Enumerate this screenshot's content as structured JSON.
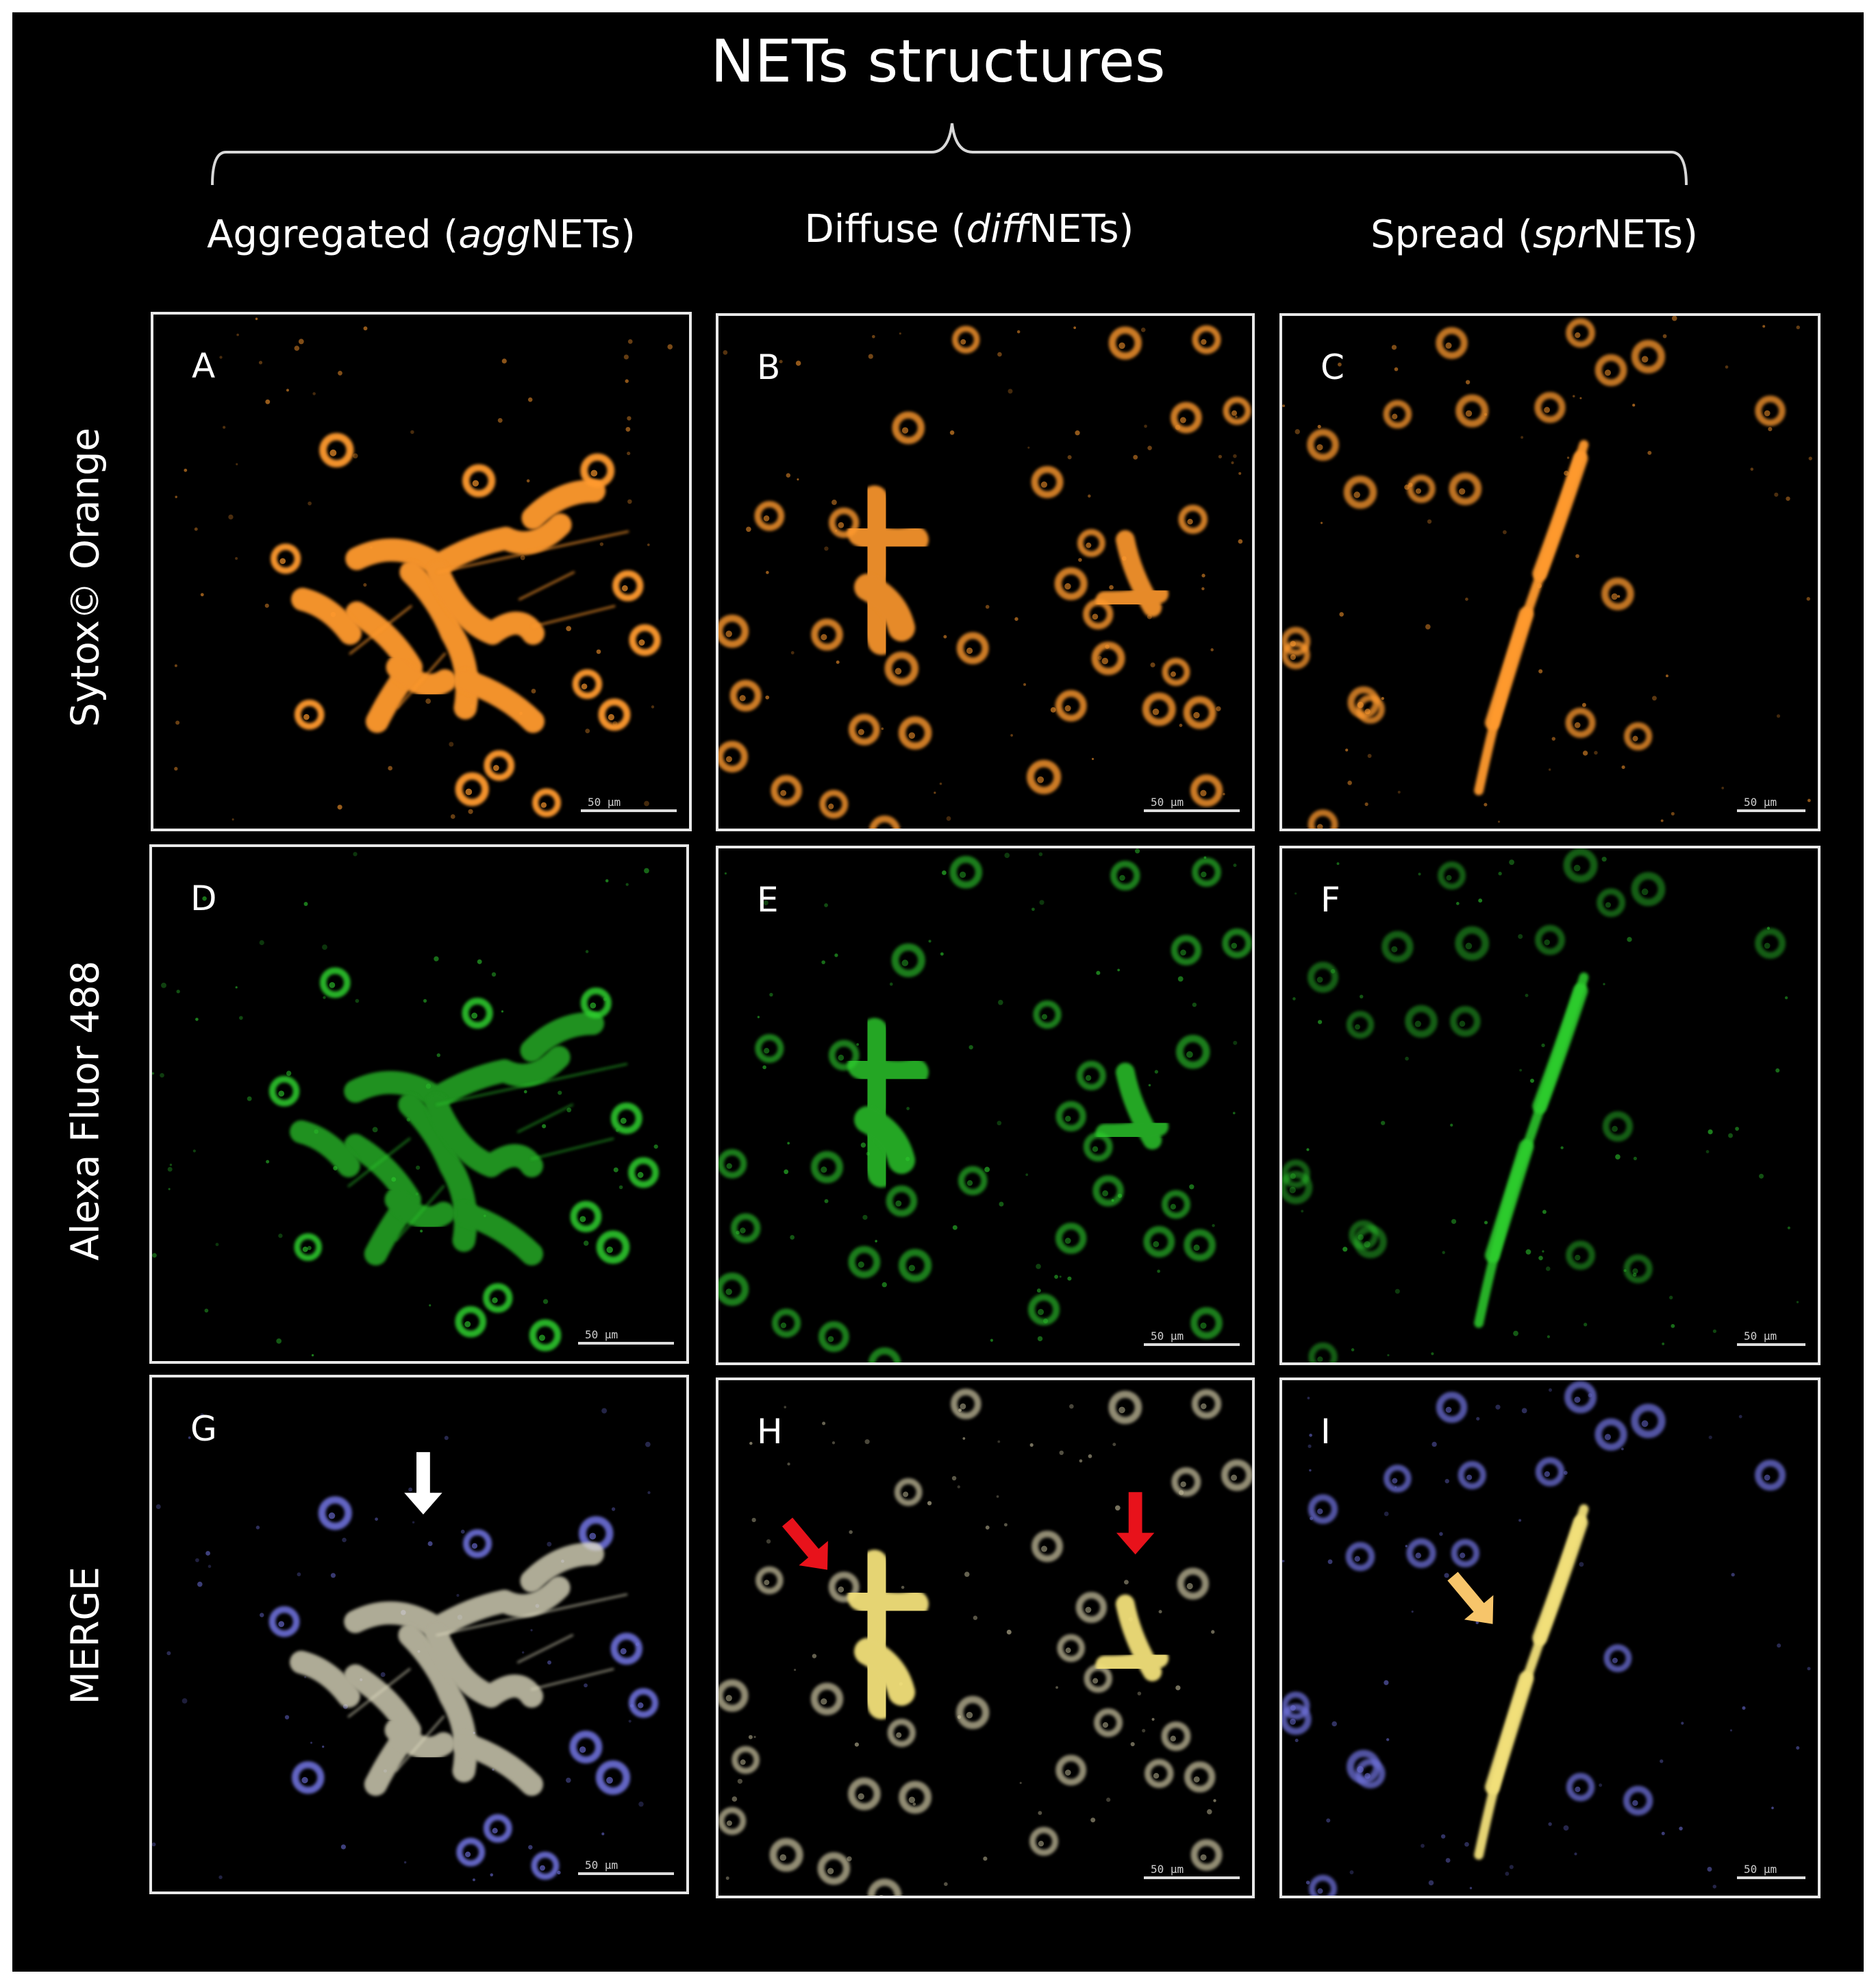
{
  "figure": {
    "title": "NETs structures",
    "columns": [
      {
        "prefix": "Aggregated (",
        "italic": "agg",
        "suffix": "NETs)"
      },
      {
        "prefix": "Diffuse (",
        "italic": "diff",
        "suffix": "NETs)"
      },
      {
        "prefix": "Spread (",
        "italic": "spr",
        "suffix": "NETs)"
      }
    ],
    "rows": [
      "Sytox© Orange",
      "Alexa Fluor 488",
      "MERGE"
    ],
    "panels": [
      "A",
      "B",
      "C",
      "D",
      "E",
      "F",
      "G",
      "H",
      "I"
    ],
    "scalebar_text": "50 μm",
    "colors": {
      "background": "#000000",
      "sytox": "#ff9a2e",
      "alexa": "#2fd02f",
      "merge_net": "#f2e07a",
      "merge_nuclei": "#6d6fd8",
      "arrow_white": "#ffffff",
      "arrow_red": "#e8121b",
      "arrow_yellow": "#f7c56a"
    }
  }
}
